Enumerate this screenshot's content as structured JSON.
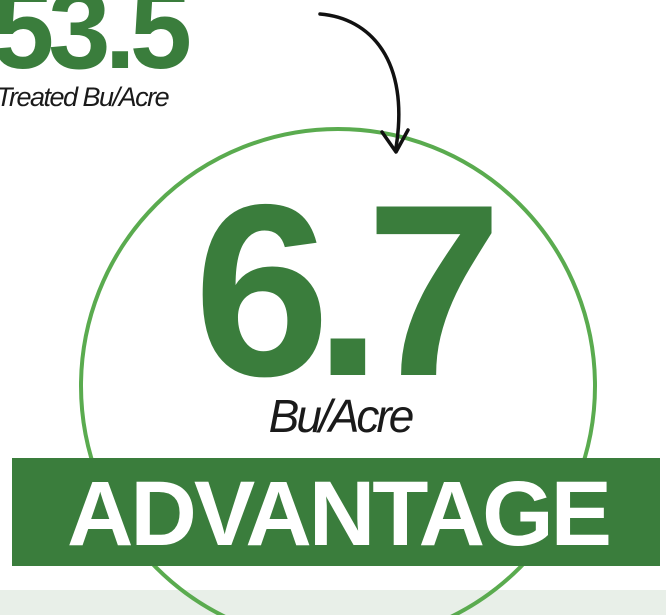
{
  "top_stat": {
    "value": "53.5",
    "caption": "Treated Bu/Acre"
  },
  "main_stat": {
    "value": "6.7",
    "unit": "Bu/Acre"
  },
  "banner": "ADVANTAGE"
}
